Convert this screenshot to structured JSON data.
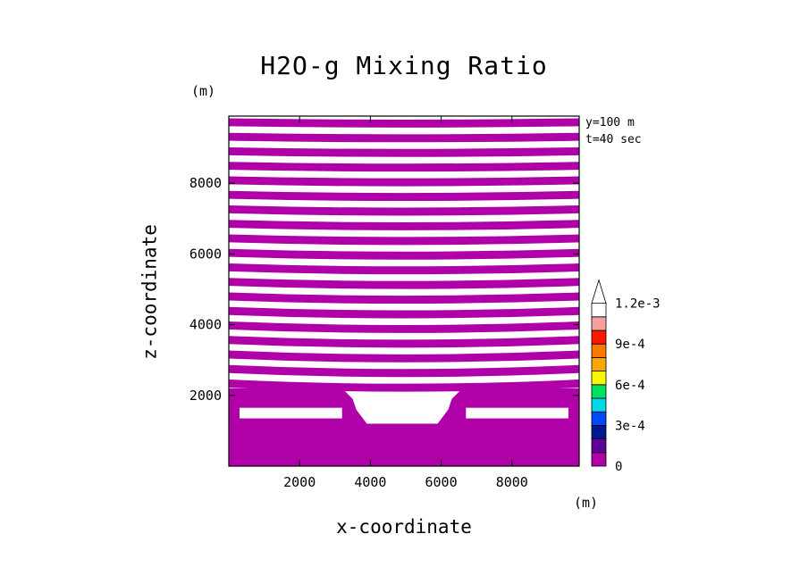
{
  "chart_data": {
    "type": "heatmap",
    "title": "H2O-g Mixing Ratio",
    "xlabel": "x-coordinate",
    "ylabel": "z-coordinate",
    "x_unit": "(m)",
    "y_unit": "(m)",
    "xlim": [
      0,
      9900
    ],
    "ylim": [
      0,
      9900
    ],
    "x_ticks": [
      2000,
      4000,
      6000,
      8000
    ],
    "y_ticks": [
      2000,
      4000,
      6000,
      8000
    ],
    "annotations": [
      "y=100 m",
      "t=40 sec"
    ],
    "colorbar": {
      "levels": [
        0,
        0.00015,
        0.0003,
        0.00045,
        0.0006,
        0.00075,
        0.0009,
        0.00105,
        0.0012,
        0.00135
      ],
      "colors": [
        "#b000a8",
        "#600098",
        "#001890",
        "#0048f8",
        "#00d8e8",
        "#00e060",
        "#f8f800",
        "#f8a800",
        "#f87800",
        "#f81800",
        "#f8a0a0",
        "#ffffff"
      ],
      "tick_labels": [
        "0",
        "3e-4",
        "6e-4",
        "9e-4",
        "1.2e-3"
      ],
      "extend": "max"
    },
    "field_description_values": {
      "fill_color": "#b000a8",
      "banded_region_z": [
        2100,
        9900
      ],
      "band_count": 19,
      "lower_block_z": [
        0,
        1200
      ],
      "valley_x": [
        3600,
        6100
      ],
      "valley_floor_z": 1200,
      "step_top_z": 2200
    }
  }
}
